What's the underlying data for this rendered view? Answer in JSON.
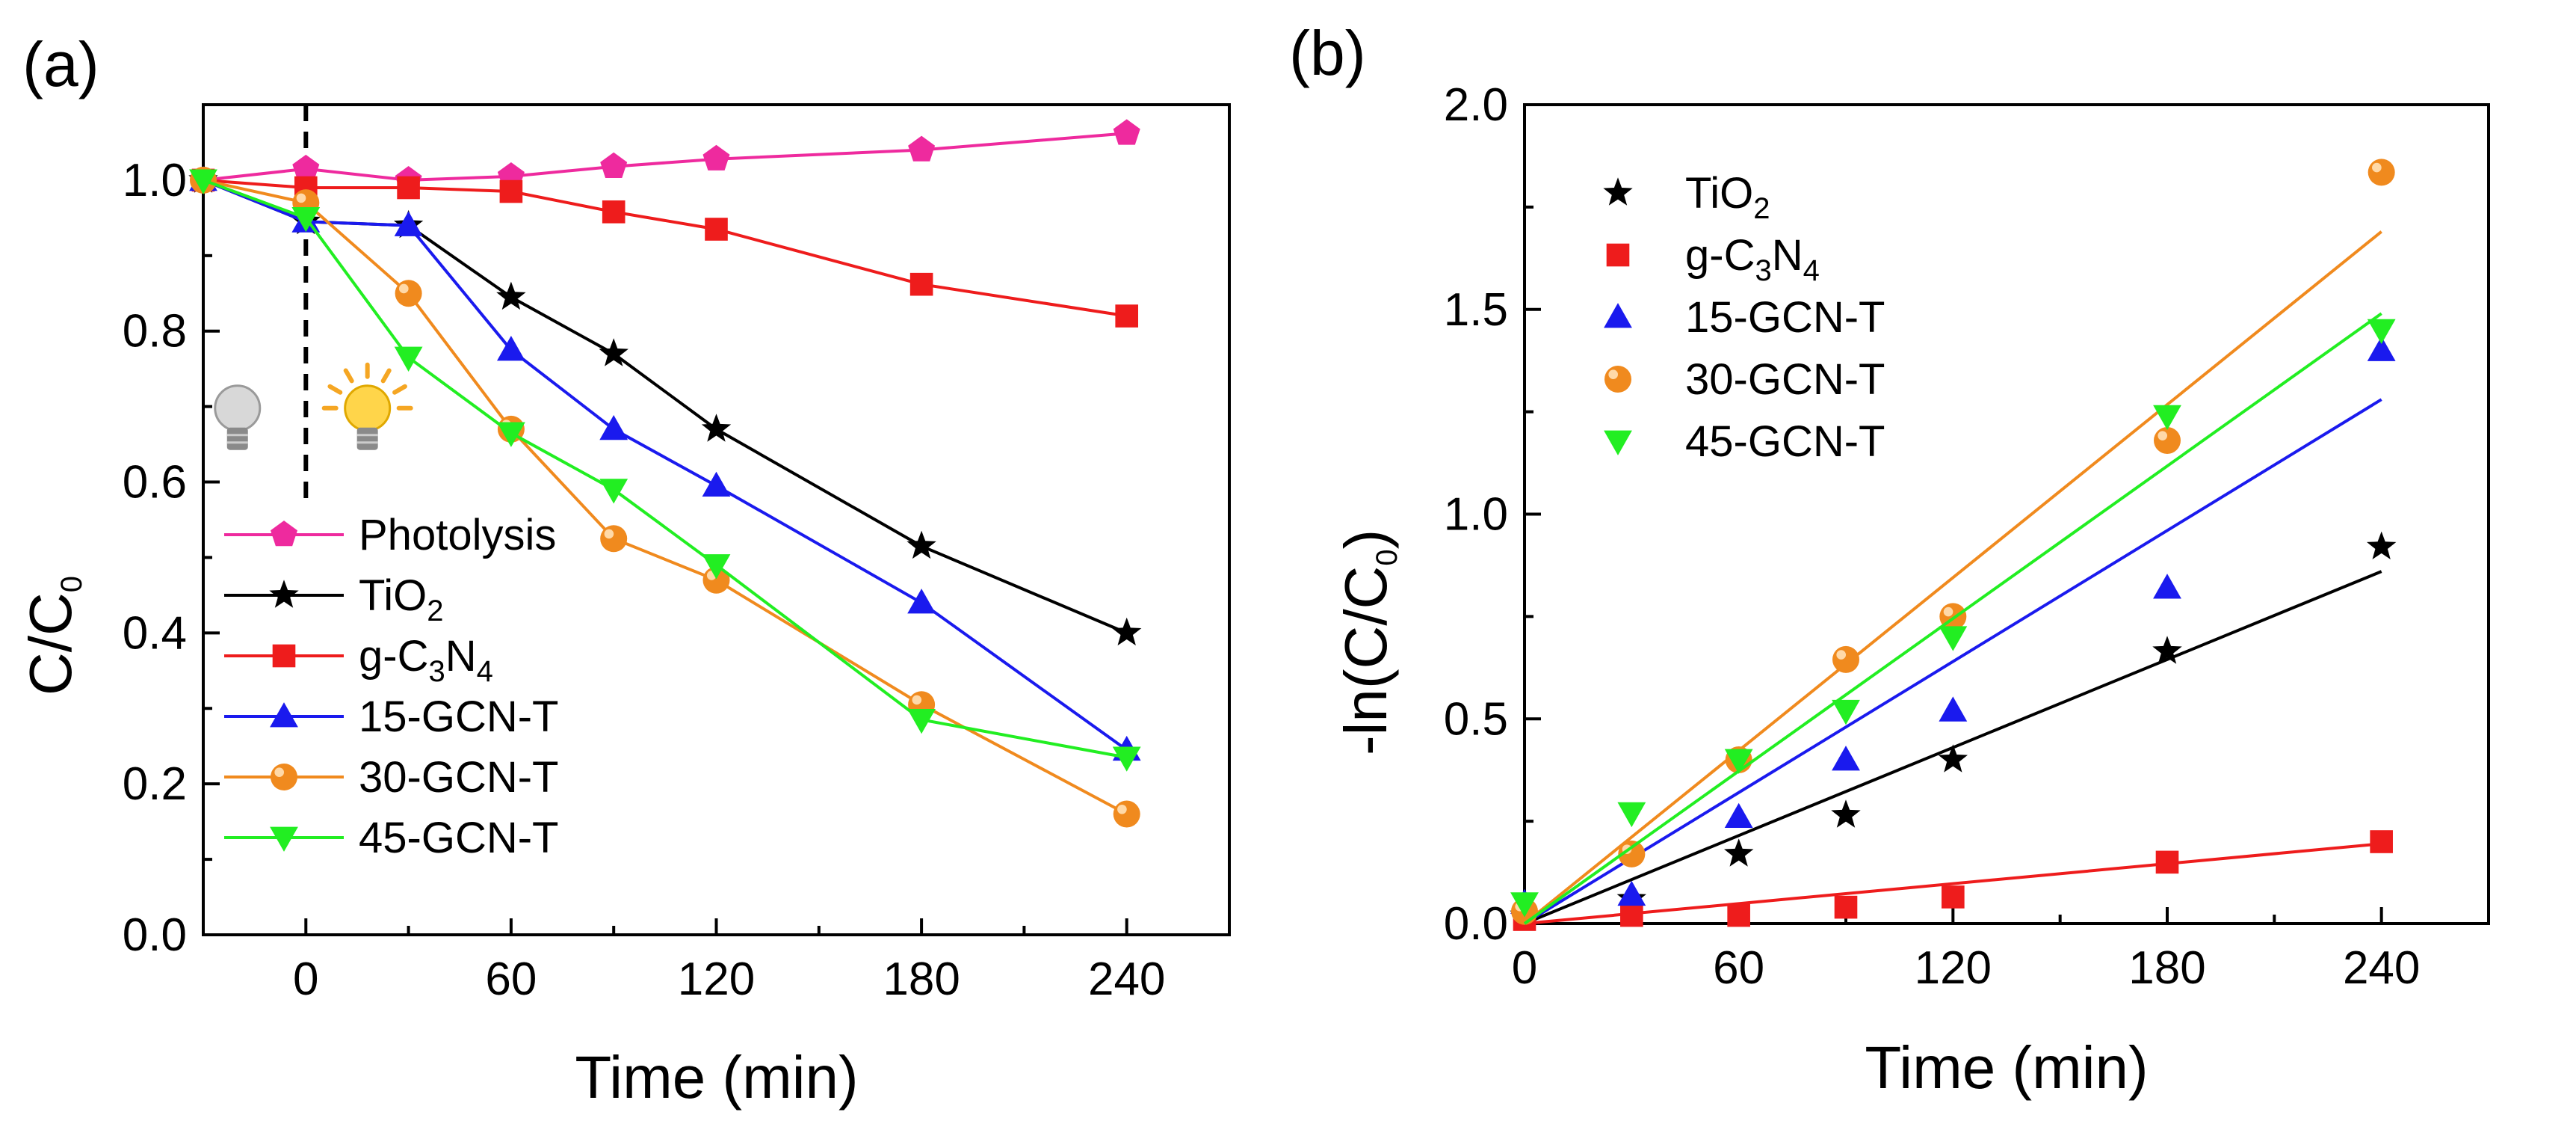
{
  "chart_data": [
    {
      "panel_label": "(a)",
      "type": "line",
      "xlabel": "Time (min)",
      "ylabel": "C/C",
      "ylabel_sub": "0",
      "xlim": [
        -30,
        270
      ],
      "ylim": [
        0.0,
        1.1
      ],
      "xticks": [
        0,
        60,
        120,
        180,
        240
      ],
      "yticks": [
        0.0,
        0.2,
        0.4,
        0.6,
        0.8,
        1.0
      ],
      "xtick_labels": [
        "0",
        "60",
        "120",
        "180",
        "240"
      ],
      "ytick_labels": [
        "0.0",
        "0.2",
        "0.4",
        "0.6",
        "0.8",
        "1.0"
      ],
      "annotations": {
        "light_on_x": 0,
        "dark_icon": "light-bulb-off-icon",
        "light_icon": "light-bulb-on-icon"
      },
      "legend_position": "bottom-left",
      "x": [
        -30,
        0,
        30,
        60,
        90,
        120,
        180,
        240
      ],
      "series": [
        {
          "name": "Photolysis",
          "label_main": "Photolysis",
          "label_parts": [],
          "color": "#ee2a9e",
          "marker": "pentagon",
          "values": [
            1.0,
            1.015,
            1.0,
            1.005,
            1.018,
            1.028,
            1.04,
            1.062
          ]
        },
        {
          "name": "TiO2",
          "label_main": "TiO",
          "label_parts": [
            [
              "sub",
              "2"
            ]
          ],
          "color": "#000000",
          "marker": "star",
          "values": [
            1.0,
            0.945,
            0.94,
            0.845,
            0.77,
            0.67,
            0.515,
            0.4
          ]
        },
        {
          "name": "g-C3N4",
          "label_main": "g-C",
          "label_parts": [
            [
              "sub",
              "3"
            ],
            [
              "text",
              "N"
            ],
            [
              "sub",
              "4"
            ]
          ],
          "color": "#ee1c1c",
          "marker": "square",
          "values": [
            1.0,
            0.99,
            0.99,
            0.985,
            0.958,
            0.935,
            0.862,
            0.82
          ]
        },
        {
          "name": "15-GCN-T",
          "label_main": "15-GCN-T",
          "label_parts": [],
          "color": "#1a1aee",
          "marker": "triangle-up",
          "values": [
            1.0,
            0.945,
            0.94,
            0.775,
            0.67,
            0.595,
            0.44,
            0.245
          ]
        },
        {
          "name": "30-GCN-T",
          "label_main": "30-GCN-T",
          "label_parts": [],
          "color": "#f08a1e",
          "marker": "circle",
          "values": [
            1.0,
            0.97,
            0.85,
            0.67,
            0.525,
            0.47,
            0.305,
            0.16
          ]
        },
        {
          "name": "45-GCN-T",
          "label_main": "45-GCN-T",
          "label_parts": [],
          "color": "#22ee22",
          "marker": "triangle-down",
          "values": [
            1.0,
            0.95,
            0.765,
            0.665,
            0.59,
            0.49,
            0.285,
            0.235
          ]
        }
      ]
    },
    {
      "panel_label": "(b)",
      "type": "scatter",
      "xlabel": "Time (min)",
      "ylabel": "-ln(C/C",
      "ylabel_sub": "0",
      "ylabel_end": ")",
      "xlim": [
        0,
        270
      ],
      "ylim": [
        0.0,
        2.0
      ],
      "xticks": [
        0,
        60,
        120,
        180,
        240
      ],
      "yticks": [
        0.0,
        0.5,
        1.0,
        1.5,
        2.0
      ],
      "xtick_labels": [
        "0",
        "60",
        "120",
        "180",
        "240"
      ],
      "ytick_labels": [
        "0.0",
        "0.5",
        "1.0",
        "1.5",
        "2.0"
      ],
      "legend_position": "top-left",
      "x": [
        0,
        30,
        60,
        90,
        120,
        180,
        240
      ],
      "series": [
        {
          "name": "TiO2",
          "label_main": "TiO",
          "label_parts": [
            [
              "sub",
              "2"
            ]
          ],
          "color": "#000000",
          "marker": "star",
          "values": [
            0.02,
            0.06,
            0.17,
            0.265,
            0.4,
            0.665,
            0.92
          ],
          "fit": [
            0.0,
            0.86
          ]
        },
        {
          "name": "g-C3N4",
          "label_main": "g-C",
          "label_parts": [
            [
              "sub",
              "3"
            ],
            [
              "text",
              "N"
            ],
            [
              "sub",
              "4"
            ]
          ],
          "color": "#ee1c1c",
          "marker": "square",
          "values": [
            0.01,
            0.02,
            0.02,
            0.04,
            0.065,
            0.15,
            0.2
          ],
          "fit": [
            0.0,
            0.195
          ]
        },
        {
          "name": "15-GCN-T",
          "label_main": "15-GCN-T",
          "label_parts": [],
          "color": "#1a1aee",
          "marker": "triangle-up",
          "values": [
            0.05,
            0.07,
            0.26,
            0.4,
            0.52,
            0.82,
            1.4
          ],
          "fit": [
            0.0,
            1.28
          ]
        },
        {
          "name": "30-GCN-T",
          "label_main": "30-GCN-T",
          "label_parts": [],
          "color": "#f08a1e",
          "marker": "circle",
          "values": [
            0.03,
            0.17,
            0.4,
            0.645,
            0.75,
            1.18,
            1.835
          ],
          "fit": [
            0.0,
            1.69
          ]
        },
        {
          "name": "45-GCN-T",
          "label_main": "45-GCN-T",
          "label_parts": [],
          "color": "#22ee22",
          "marker": "triangle-down",
          "values": [
            0.05,
            0.27,
            0.4,
            0.52,
            0.7,
            1.24,
            1.45
          ],
          "fit": [
            0.0,
            1.49
          ]
        }
      ]
    }
  ]
}
